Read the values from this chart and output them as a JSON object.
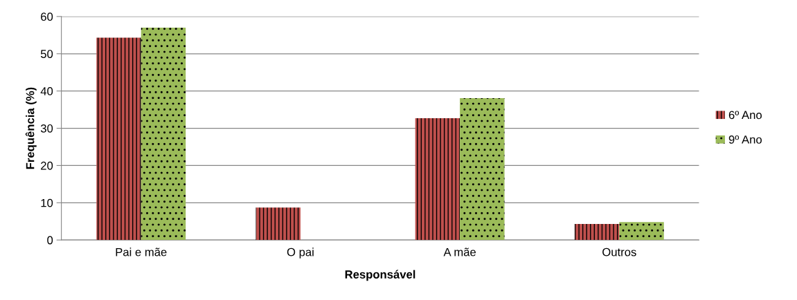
{
  "chart_data": {
    "type": "bar",
    "xlabel": "Responsável",
    "ylabel": "Frequência (%)",
    "categories": [
      "Pai e mãe",
      "O pai",
      "A mãe",
      "Outros"
    ],
    "series": [
      {
        "name": "6º Ano",
        "color": "#c0504d",
        "values": [
          54.3,
          8.7,
          32.7,
          4.3
        ]
      },
      {
        "name": "9º Ano",
        "color": "#9bbb59",
        "values": [
          57.0,
          0,
          38.1,
          4.8
        ]
      }
    ],
    "ylim": [
      0,
      60
    ],
    "yticks": [
      0,
      10,
      20,
      30,
      40,
      50,
      60
    ],
    "grid": "y",
    "legend": "right"
  }
}
